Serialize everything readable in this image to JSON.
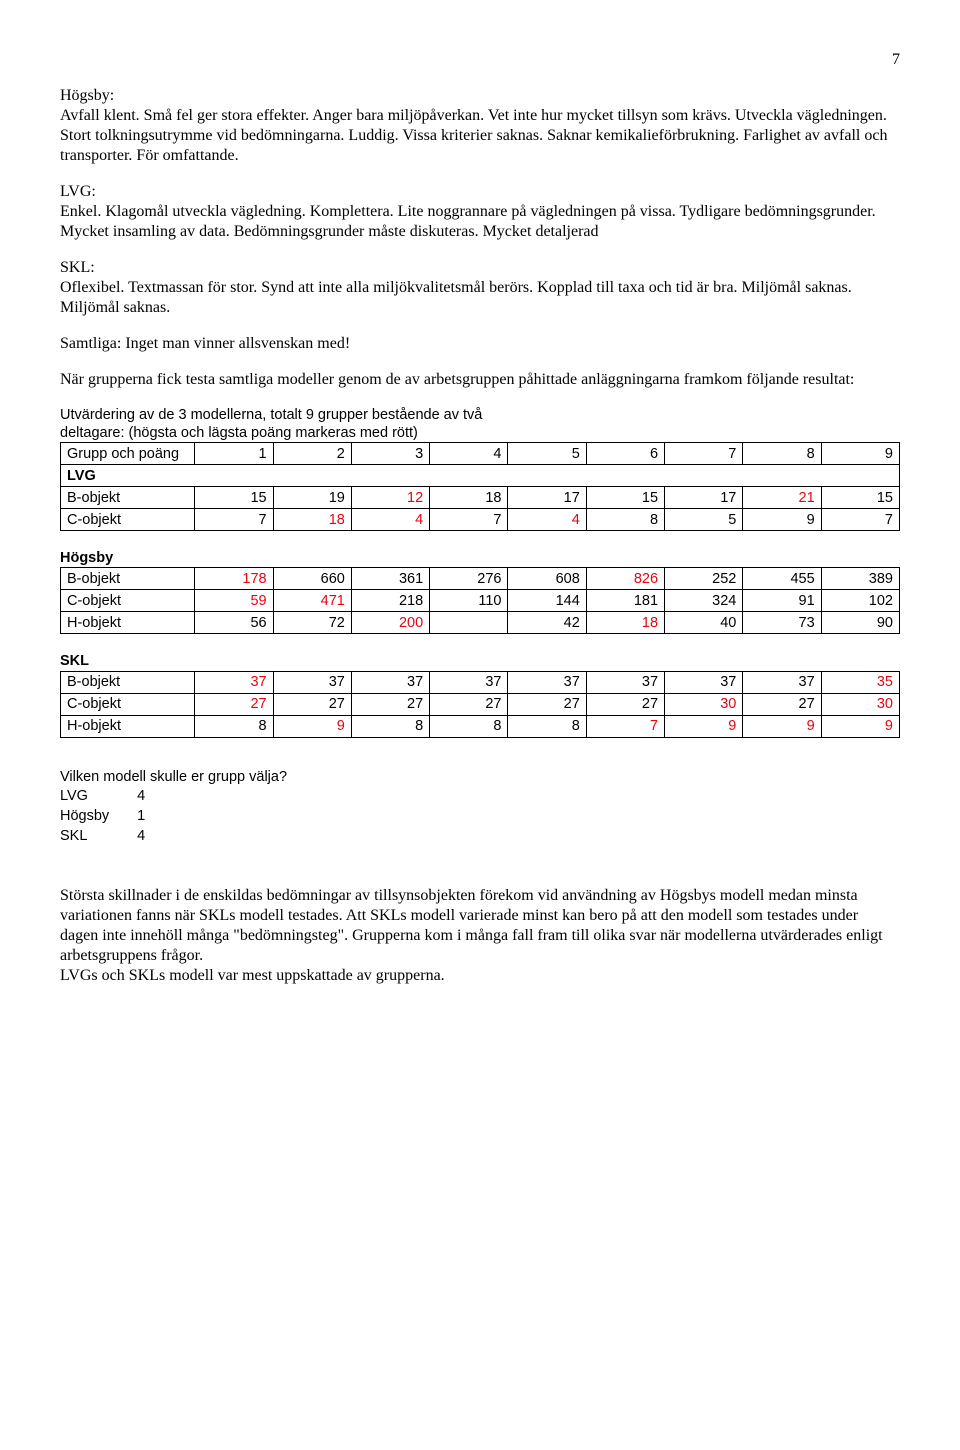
{
  "page_number": "7",
  "hogsby": {
    "label": "Högsby:",
    "text": "Avfall klent. Små fel ger stora effekter. Anger bara miljöpåverkan. Vet inte hur mycket tillsyn som krävs. Utveckla vägledningen. Stort tolkningsutrymme vid bedömningarna. Luddig. Vissa kriterier saknas. Saknar kemikalieförbrukning. Farlighet av avfall och transporter. För omfattande."
  },
  "lvg": {
    "label": "LVG:",
    "text": "Enkel. Klagomål utveckla vägledning. Komplettera. Lite noggrannare på vägledningen på vissa. Tydligare bedömningsgrunder. Mycket insamling av data. Bedömningsgrunder måste diskuteras. Mycket detaljerad"
  },
  "skl": {
    "label": "SKL:",
    "text": "Oflexibel. Textmassan för stor. Synd att inte alla miljökvalitetsmål berörs. Kopplad till taxa och tid är bra. Miljömål saknas. Miljömål saknas."
  },
  "samtliga": "Samtliga: Inget man vinner allsvenskan med!",
  "intro_tables": "När grupperna fick testa samtliga modeller genom de av arbetsgruppen påhittade anläggningarna framkom följande resultat:",
  "eval_caption_line1": "Utvärdering av de 3 modellerna, totalt 9 grupper bestående av två",
  "eval_caption_line2": "deltagare: (högsta och lägsta poäng markeras med rött)",
  "header_row": {
    "label": "Grupp och poäng",
    "cols": [
      "1",
      "2",
      "3",
      "4",
      "5",
      "6",
      "7",
      "8",
      "9"
    ]
  },
  "colors": {
    "highlight": "#e30613",
    "text": "#000000",
    "border": "#000000",
    "bg": "#ffffff"
  },
  "col_widths": {
    "label_pct": 16,
    "data_pct": 9.33
  },
  "tables": [
    {
      "title": "LVG",
      "rows": [
        {
          "label": "B-objekt",
          "cells": [
            {
              "v": "15",
              "hl": false
            },
            {
              "v": "19",
              "hl": false
            },
            {
              "v": "12",
              "hl": true
            },
            {
              "v": "18",
              "hl": false
            },
            {
              "v": "17",
              "hl": false
            },
            {
              "v": "15",
              "hl": false
            },
            {
              "v": "17",
              "hl": false
            },
            {
              "v": "21",
              "hl": true
            },
            {
              "v": "15",
              "hl": false
            }
          ]
        },
        {
          "label": "C-objekt",
          "cells": [
            {
              "v": "7",
              "hl": false
            },
            {
              "v": "18",
              "hl": true
            },
            {
              "v": "4",
              "hl": true
            },
            {
              "v": "7",
              "hl": false
            },
            {
              "v": "4",
              "hl": true
            },
            {
              "v": "8",
              "hl": false
            },
            {
              "v": "5",
              "hl": false
            },
            {
              "v": "9",
              "hl": false
            },
            {
              "v": "7",
              "hl": false
            }
          ]
        }
      ]
    },
    {
      "title": "Högsby",
      "rows": [
        {
          "label": "B-objekt",
          "cells": [
            {
              "v": "178",
              "hl": true
            },
            {
              "v": "660",
              "hl": false
            },
            {
              "v": "361",
              "hl": false
            },
            {
              "v": "276",
              "hl": false
            },
            {
              "v": "608",
              "hl": false
            },
            {
              "v": "826",
              "hl": true
            },
            {
              "v": "252",
              "hl": false
            },
            {
              "v": "455",
              "hl": false
            },
            {
              "v": "389",
              "hl": false
            }
          ]
        },
        {
          "label": "C-objekt",
          "cells": [
            {
              "v": "59",
              "hl": true
            },
            {
              "v": "471",
              "hl": true
            },
            {
              "v": "218",
              "hl": false
            },
            {
              "v": "110",
              "hl": false
            },
            {
              "v": "144",
              "hl": false
            },
            {
              "v": "181",
              "hl": false
            },
            {
              "v": "324",
              "hl": false
            },
            {
              "v": "91",
              "hl": false
            },
            {
              "v": "102",
              "hl": false
            }
          ]
        },
        {
          "label": "H-objekt",
          "cells": [
            {
              "v": "56",
              "hl": false
            },
            {
              "v": "72",
              "hl": false
            },
            {
              "v": "200",
              "hl": true
            },
            {
              "v": "",
              "hl": false
            },
            {
              "v": "42",
              "hl": false
            },
            {
              "v": "18",
              "hl": true
            },
            {
              "v": "40",
              "hl": false
            },
            {
              "v": "73",
              "hl": false
            },
            {
              "v": "90",
              "hl": false
            }
          ]
        }
      ]
    },
    {
      "title": "SKL",
      "rows": [
        {
          "label": "B-objekt",
          "cells": [
            {
              "v": "37",
              "hl": true
            },
            {
              "v": "37",
              "hl": false
            },
            {
              "v": "37",
              "hl": false
            },
            {
              "v": "37",
              "hl": false
            },
            {
              "v": "37",
              "hl": false
            },
            {
              "v": "37",
              "hl": false
            },
            {
              "v": "37",
              "hl": false
            },
            {
              "v": "37",
              "hl": false
            },
            {
              "v": "35",
              "hl": true
            }
          ]
        },
        {
          "label": "C-objekt",
          "cells": [
            {
              "v": "27",
              "hl": true
            },
            {
              "v": "27",
              "hl": false
            },
            {
              "v": "27",
              "hl": false
            },
            {
              "v": "27",
              "hl": false
            },
            {
              "v": "27",
              "hl": false
            },
            {
              "v": "27",
              "hl": false
            },
            {
              "v": "30",
              "hl": true
            },
            {
              "v": "27",
              "hl": false
            },
            {
              "v": "30",
              "hl": true
            }
          ]
        },
        {
          "label": "H-objekt",
          "cells": [
            {
              "v": "8",
              "hl": false
            },
            {
              "v": "9",
              "hl": true
            },
            {
              "v": "8",
              "hl": false
            },
            {
              "v": "8",
              "hl": false
            },
            {
              "v": "8",
              "hl": false
            },
            {
              "v": "7",
              "hl": true
            },
            {
              "v": "9",
              "hl": true
            },
            {
              "v": "9",
              "hl": true
            },
            {
              "v": "9",
              "hl": true
            }
          ]
        }
      ]
    }
  ],
  "choice": {
    "question": "Vilken modell skulle er grupp välja?",
    "rows": [
      {
        "label": "LVG",
        "value": "4"
      },
      {
        "label": "Högsby",
        "value": "1"
      },
      {
        "label": "SKL",
        "value": "4"
      }
    ]
  },
  "closing_p1": "Största skillnader i de enskildas bedömningar av tillsynsobjekten förekom vid användning av Högsbys modell medan minsta variationen fanns när SKLs modell testades. Att SKLs modell varierade minst kan bero på att den modell som testades under dagen inte innehöll många \"bedömningsteg\". Grupperna kom i många fall fram till olika svar när modellerna utvärderades enligt arbetsgruppens frågor.",
  "closing_p2": "LVGs och SKLs modell var mest uppskattade av grupperna."
}
